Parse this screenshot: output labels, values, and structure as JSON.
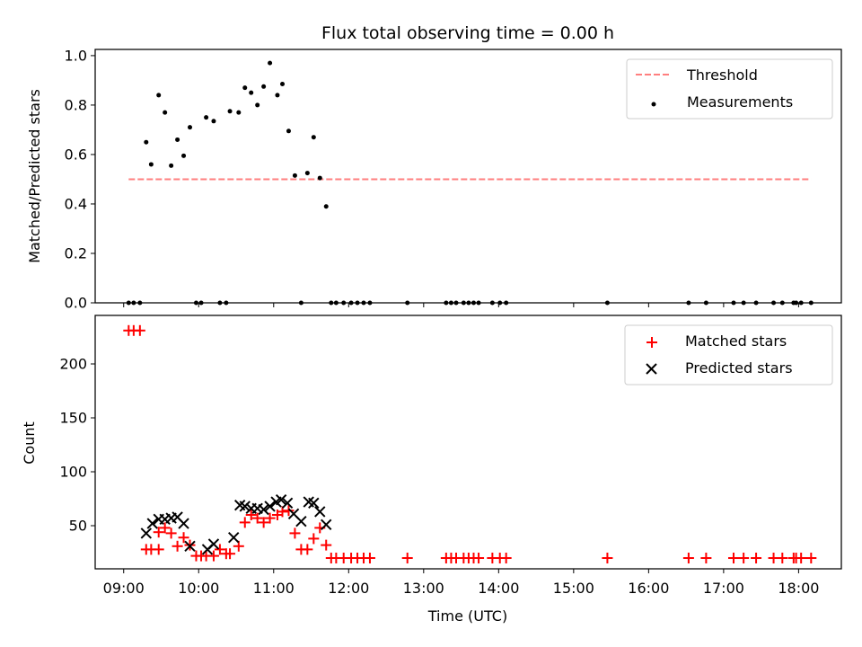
{
  "figure": {
    "title": "Flux total observing time = 0.00 h",
    "xlabel": "Time (UTC)"
  },
  "chart_data": [
    {
      "type": "scatter",
      "panel": "top",
      "ylabel": "Matched/Predicted stars",
      "xlim_hours": [
        8.62,
        18.57
      ],
      "ylim": [
        0,
        1.0
      ],
      "yticks": [
        "0.0",
        "0.2",
        "0.4",
        "0.6",
        "0.8",
        "1.0"
      ],
      "grid": false,
      "legend_position": "top-right",
      "threshold": {
        "name": "Threshold",
        "y": 0.5,
        "x_start": "09:04",
        "x_end": "18:10",
        "color": "#ff7f7f",
        "style": "dashed"
      },
      "series": [
        {
          "name": "Measurements",
          "color": "#000000",
          "marker": "dot",
          "x": [
            "09:04",
            "09:08",
            "09:13",
            "09:18",
            "09:22",
            "09:28",
            "09:33",
            "09:38",
            "09:43",
            "09:48",
            "09:53",
            "09:58",
            "10:02",
            "10:06",
            "10:12",
            "10:17",
            "10:22",
            "10:25",
            "10:32",
            "10:37",
            "10:42",
            "10:47",
            "10:52",
            "10:57",
            "11:03",
            "11:07",
            "11:12",
            "11:17",
            "11:22",
            "11:27",
            "11:32",
            "11:37",
            "11:42",
            "11:46",
            "11:50",
            "11:56",
            "12:02",
            "12:07",
            "12:12",
            "12:17",
            "12:47",
            "13:18",
            "13:22",
            "13:26",
            "13:32",
            "13:36",
            "13:40",
            "13:44",
            "13:55",
            "14:01",
            "14:06",
            "15:27",
            "16:32",
            "16:46",
            "17:08",
            "17:16",
            "17:26",
            "17:40",
            "17:47",
            "17:56",
            "17:58",
            "18:02",
            "18:10"
          ],
          "y": [
            0,
            0,
            0,
            0.65,
            0.56,
            0.84,
            0.77,
            0.555,
            0.66,
            0.595,
            0.71,
            0,
            0,
            0.75,
            0.735,
            0,
            0,
            0.775,
            0.77,
            0.87,
            0.85,
            0.8,
            0.875,
            0.97,
            0.84,
            0.885,
            0.695,
            0.515,
            0,
            0.525,
            0.67,
            0.505,
            0.39,
            0,
            0,
            0,
            0,
            0,
            0,
            0,
            0,
            0,
            0,
            0,
            0,
            0,
            0,
            0,
            0,
            0,
            0,
            0,
            0,
            0,
            0,
            0,
            0,
            0,
            0,
            0,
            0,
            0,
            0
          ]
        }
      ]
    },
    {
      "type": "scatter",
      "panel": "bottom",
      "ylabel": "Count",
      "xlim_hours": [
        8.62,
        18.57
      ],
      "ylim": [
        10,
        245
      ],
      "yticks": [
        "50",
        "100",
        "150",
        "200"
      ],
      "xticks": [
        "09:00",
        "10:00",
        "11:00",
        "12:00",
        "13:00",
        "14:00",
        "15:00",
        "16:00",
        "17:00",
        "18:00"
      ],
      "grid": false,
      "legend_position": "top-right",
      "series": [
        {
          "name": "Matched stars",
          "color": "#ff0000",
          "marker": "plus",
          "x": [
            "09:04",
            "09:08",
            "09:13",
            "09:22",
            "09:28",
            "09:33",
            "09:38",
            "09:43",
            "09:48",
            "09:53",
            "09:58",
            "10:02",
            "10:06",
            "10:12",
            "10:17",
            "10:22",
            "10:25",
            "10:32",
            "10:37",
            "10:42",
            "10:47",
            "10:52",
            "10:57",
            "11:03",
            "11:07",
            "11:12",
            "11:17",
            "11:22",
            "11:27",
            "11:32",
            "11:37",
            "11:42",
            "11:46",
            "11:50",
            "11:56",
            "12:02",
            "12:07",
            "12:12",
            "12:17",
            "12:47",
            "13:18",
            "13:22",
            "13:26",
            "13:32",
            "13:36",
            "13:40",
            "13:44",
            "13:55",
            "14:01",
            "14:06",
            "15:27",
            "16:32",
            "16:46",
            "17:08",
            "17:16",
            "17:26",
            "17:40",
            "17:47",
            "17:56",
            "17:58",
            "18:02",
            "18:10",
            "09:18",
            "09:28"
          ],
          "y": [
            231,
            231,
            231,
            28,
            28,
            48,
            43,
            31,
            39,
            32,
            22,
            22,
            22,
            22,
            28,
            24,
            24,
            31,
            53,
            60,
            57,
            53,
            57,
            60,
            63,
            64,
            43,
            28,
            28,
            38,
            48,
            32,
            20,
            20,
            20,
            20,
            20,
            20,
            20,
            20,
            20,
            20,
            20,
            20,
            20,
            20,
            20,
            20,
            20,
            20,
            20,
            20,
            20,
            20,
            20,
            20,
            20,
            20,
            20,
            20,
            20,
            20,
            28,
            44
          ]
        },
        {
          "name": "Predicted stars",
          "color": "#000000",
          "marker": "x",
          "x": [
            "09:18",
            "09:23",
            "09:28",
            "09:33",
            "09:38",
            "09:43",
            "09:48",
            "09:53",
            "10:07",
            "10:12",
            "10:28",
            "10:33",
            "10:37",
            "10:42",
            "10:47",
            "10:52",
            "10:57",
            "11:02",
            "11:06",
            "11:11",
            "11:16",
            "11:22",
            "11:28",
            "11:32",
            "11:37",
            "11:42"
          ],
          "y": [
            43,
            52,
            56,
            56,
            57,
            58,
            52,
            31,
            28,
            33,
            39,
            69,
            68,
            66,
            66,
            65,
            68,
            72,
            74,
            71,
            61,
            54,
            72,
            71,
            63,
            51
          ]
        }
      ]
    }
  ]
}
